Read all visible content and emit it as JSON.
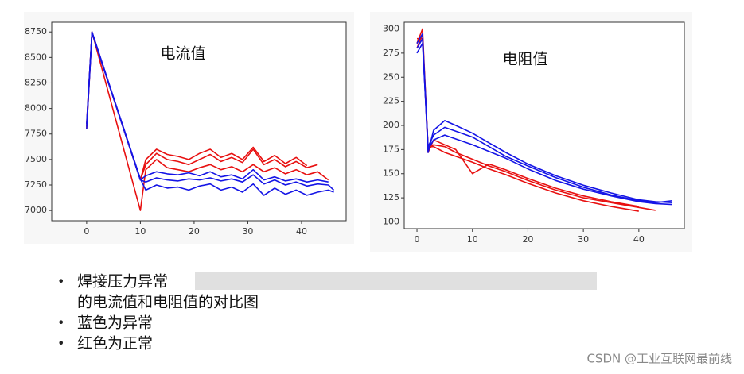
{
  "chart_data": [
    {
      "type": "line",
      "title": "电流值",
      "x": [
        0,
        1,
        10,
        11,
        13,
        15,
        17,
        19,
        21,
        23,
        25,
        27,
        29,
        31,
        33,
        35,
        37,
        39,
        41,
        43,
        45,
        46
      ],
      "series": [
        {
          "color": "#e81010",
          "values": [
            7820,
            8750,
            7300,
            7450,
            7560,
            7500,
            7480,
            7450,
            7500,
            7550,
            7480,
            7520,
            7470,
            7600,
            7450,
            7500,
            7430,
            7480,
            7420,
            7450,
            null,
            null
          ]
        },
        {
          "color": "#e81010",
          "values": [
            7850,
            8750,
            7000,
            7400,
            7500,
            7420,
            7400,
            7380,
            7420,
            7450,
            7400,
            7430,
            7380,
            7450,
            7380,
            7420,
            7360,
            7400,
            7350,
            7380,
            7300,
            null
          ]
        },
        {
          "color": "#e81010",
          "values": [
            7800,
            8740,
            7300,
            7500,
            7600,
            7550,
            7530,
            7500,
            7560,
            7600,
            7520,
            7560,
            7500,
            7620,
            7480,
            7540,
            7460,
            7520,
            7440,
            null,
            null,
            null
          ]
        },
        {
          "color": "#1414e6",
          "values": [
            7830,
            8750,
            7300,
            7280,
            7320,
            7300,
            7290,
            7310,
            7300,
            7320,
            7290,
            7310,
            7280,
            7350,
            7260,
            7300,
            7250,
            7280,
            7240,
            7260,
            7250,
            7200
          ]
        },
        {
          "color": "#1414e6",
          "values": [
            7850,
            8750,
            7310,
            7200,
            7250,
            7220,
            7230,
            7200,
            7240,
            7260,
            7200,
            7230,
            7180,
            7260,
            7150,
            7220,
            7160,
            7200,
            7150,
            7180,
            7200,
            7180
          ]
        },
        {
          "color": "#1414e6",
          "values": [
            7800,
            8740,
            7300,
            7340,
            7380,
            7360,
            7350,
            7370,
            7340,
            7380,
            7330,
            7350,
            7310,
            7400,
            7300,
            7330,
            7290,
            7310,
            7280,
            7300,
            7280,
            null
          ]
        }
      ],
      "xlim": [
        -6.5,
        48.3
      ],
      "ylim": [
        6900,
        8845
      ],
      "xticks": [
        0,
        10,
        20,
        30,
        40
      ],
      "yticks": [
        7000,
        7250,
        7500,
        7750,
        8000,
        8250,
        8500,
        8750
      ]
    },
    {
      "type": "line",
      "title": "电阻值",
      "x": [
        0,
        1,
        2,
        3,
        5,
        7,
        10,
        13,
        16,
        20,
        25,
        30,
        35,
        40,
        43,
        46
      ],
      "series": [
        {
          "color": "#e81010",
          "values": [
            285,
            300,
            175,
            180,
            178,
            172,
            165,
            158,
            152,
            143,
            133,
            125,
            120,
            115,
            112,
            null
          ]
        },
        {
          "color": "#e81010",
          "values": [
            280,
            295,
            172,
            185,
            180,
            175,
            150,
            160,
            154,
            145,
            135,
            127,
            121,
            116,
            null,
            null
          ]
        },
        {
          "color": "#e81010",
          "values": [
            290,
            290,
            178,
            178,
            172,
            168,
            162,
            155,
            149,
            140,
            130,
            122,
            116,
            111,
            null,
            null
          ]
        },
        {
          "color": "#1414e6",
          "values": [
            280,
            290,
            172,
            195,
            205,
            200,
            192,
            182,
            172,
            160,
            148,
            138,
            130,
            123,
            121,
            120
          ]
        },
        {
          "color": "#1414e6",
          "values": [
            285,
            295,
            175,
            185,
            190,
            186,
            180,
            173,
            166,
            155,
            143,
            134,
            127,
            121,
            119,
            118
          ]
        },
        {
          "color": "#1414e6",
          "values": [
            275,
            285,
            178,
            190,
            198,
            194,
            188,
            178,
            168,
            158,
            146,
            136,
            128,
            122,
            120,
            122
          ]
        }
      ],
      "xlim": [
        -2.3,
        48.2
      ],
      "ylim": [
        93,
        307
      ],
      "xticks": [
        0,
        10,
        20,
        30,
        40
      ],
      "yticks": [
        100,
        125,
        150,
        175,
        200,
        225,
        250,
        275,
        300
      ]
    }
  ],
  "bullets": [
    [
      "焊接压力异常",
      "的电流值和电阻值的对比图"
    ],
    [
      "蓝色为异常"
    ],
    [
      "红色为正常"
    ]
  ],
  "watermark": "CSDN @工业互联网最前线"
}
